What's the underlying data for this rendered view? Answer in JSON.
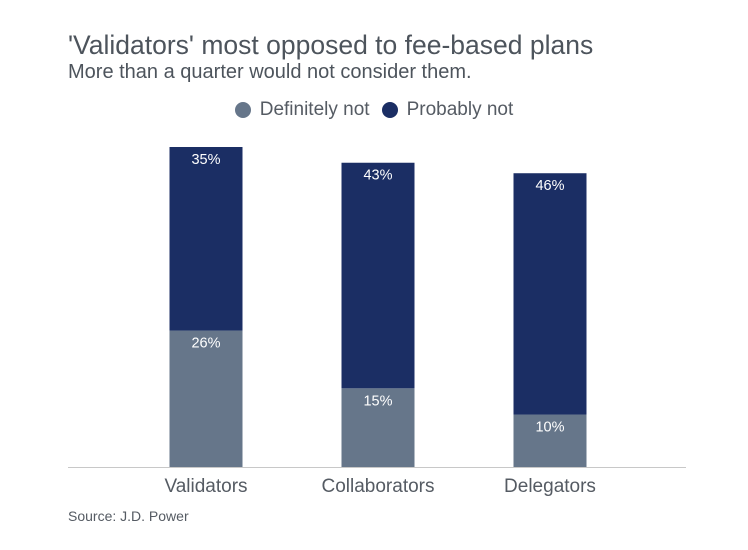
{
  "title": "'Validators' most opposed to fee-based plans",
  "subtitle": "More than a quarter would not consider them.",
  "source": "Source: J.D. Power",
  "legend": {
    "definitely_not": "Definitely not",
    "probably_not": "Probably not"
  },
  "colors": {
    "definitely_not": "#66768a",
    "probably_not": "#1b2e64",
    "axis": "#c8c8c8",
    "label_inside": "#ffffff",
    "tick_label": "#555b63"
  },
  "chart_data": {
    "type": "bar",
    "stacked": true,
    "title": "'Validators' most opposed to fee-based plans",
    "subtitle": "More than a quarter would not consider them.",
    "categories": [
      "Validators",
      "Collaborators",
      "Delegators"
    ],
    "series": [
      {
        "name": "Definitely not",
        "values": [
          26,
          15,
          10
        ],
        "labels": [
          "26%",
          "15%",
          "10%"
        ]
      },
      {
        "name": "Probably not",
        "values": [
          35,
          43,
          46
        ],
        "labels": [
          "35%",
          "43%",
          "46%"
        ]
      }
    ],
    "ylim": [
      0,
      61
    ],
    "xlabel": "",
    "ylabel": "",
    "legend_position": "top-center",
    "grid": false
  }
}
